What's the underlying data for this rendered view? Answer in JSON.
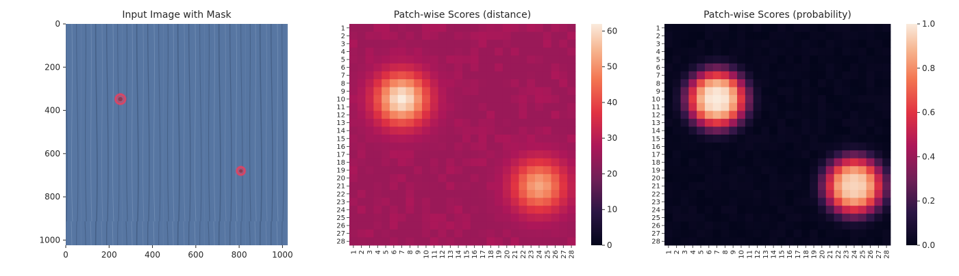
{
  "chart_data": [
    {
      "type": "image",
      "title": "Input Image with Mask",
      "xlabel": "",
      "ylabel": "",
      "xlim": [
        0,
        1024
      ],
      "ylim": [
        1024,
        0
      ],
      "xticks": [
        0,
        200,
        400,
        600,
        800,
        1000
      ],
      "yticks": [
        0,
        200,
        400,
        600,
        800,
        1000
      ],
      "background_color": "#5b7aa6",
      "mask_color": "#e8405f",
      "mask_regions": [
        {
          "x": 252,
          "y": 348,
          "r": 22
        },
        {
          "x": 808,
          "y": 680,
          "r": 18
        }
      ]
    },
    {
      "type": "heatmap",
      "title": "Patch-wise Scores (distance)",
      "xlabel": "",
      "ylabel": "",
      "rows": 28,
      "cols": 28,
      "x_tick_labels": [
        "1",
        "2",
        "3",
        "4",
        "5",
        "6",
        "7",
        "8",
        "9",
        "10",
        "11",
        "12",
        "13",
        "14",
        "15",
        "16",
        "17",
        "18",
        "19",
        "20",
        "21",
        "22",
        "23",
        "24",
        "25",
        "26",
        "27",
        "28"
      ],
      "y_tick_labels": [
        "1",
        "2",
        "3",
        "4",
        "5",
        "6",
        "7",
        "8",
        "9",
        "10",
        "11",
        "12",
        "13",
        "14",
        "15",
        "16",
        "17",
        "18",
        "19",
        "20",
        "21",
        "22",
        "23",
        "24",
        "25",
        "26",
        "27",
        "28"
      ],
      "colorbar_ticks": [
        0,
        10,
        20,
        30,
        40,
        50,
        60
      ],
      "vmin": 0,
      "vmax": 62,
      "colormap": "rocket",
      "background_level": 25,
      "hotspots": [
        {
          "row": 10,
          "col": 7,
          "peak": 62
        },
        {
          "row": 21,
          "col": 24,
          "peak": 53
        }
      ]
    },
    {
      "type": "heatmap",
      "title": "Patch-wise Scores (probability)",
      "xlabel": "",
      "ylabel": "",
      "rows": 28,
      "cols": 28,
      "x_tick_labels": [
        "1",
        "2",
        "3",
        "4",
        "5",
        "6",
        "7",
        "8",
        "9",
        "10",
        "11",
        "12",
        "13",
        "14",
        "15",
        "16",
        "17",
        "18",
        "19",
        "20",
        "21",
        "22",
        "23",
        "24",
        "25",
        "26",
        "27",
        "28"
      ],
      "y_tick_labels": [
        "1",
        "2",
        "3",
        "4",
        "5",
        "6",
        "7",
        "8",
        "9",
        "10",
        "11",
        "12",
        "13",
        "14",
        "15",
        "16",
        "17",
        "18",
        "19",
        "20",
        "21",
        "22",
        "23",
        "24",
        "25",
        "26",
        "27",
        "28"
      ],
      "colorbar_ticks": [
        "0.0",
        "0.2",
        "0.4",
        "0.6",
        "0.8",
        "1.0"
      ],
      "vmin": 0,
      "vmax": 1,
      "colormap": "rocket",
      "background_level": 0,
      "hotspots": [
        {
          "row": 10,
          "col": 7,
          "peak": 1.0
        },
        {
          "row": 21,
          "col": 24,
          "peak": 0.95
        }
      ]
    }
  ]
}
